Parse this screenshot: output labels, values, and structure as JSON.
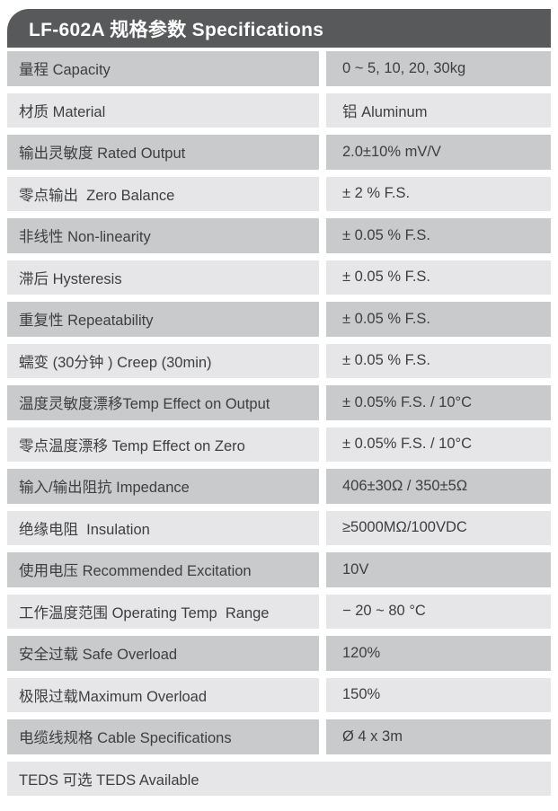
{
  "header": {
    "title": "LF-602A 规格参数 Specifications"
  },
  "table": {
    "rows": [
      {
        "label": "量程 Capacity",
        "value": "0 ~ 5, 10, 20, 30kg"
      },
      {
        "label": "材质 Material",
        "value": "铝 Aluminum"
      },
      {
        "label": "输出灵敏度 Rated Output",
        "value": "2.0±10% mV/V"
      },
      {
        "label": "零点输出  Zero Balance",
        "value": "± 2 % F.S."
      },
      {
        "label": "非线性 Non-linearity",
        "value": "± 0.05 % F.S."
      },
      {
        "label": "滞后 Hysteresis",
        "value": "± 0.05 % F.S."
      },
      {
        "label": "重复性 Repeatability",
        "value": "± 0.05 % F.S."
      },
      {
        "label": "蠕变 (30分钟 ) Creep (30min)",
        "value": "± 0.05 % F.S."
      },
      {
        "label": "温度灵敏度漂移Temp Effect on Output",
        "value": "± 0.05% F.S. / 10°C"
      },
      {
        "label": "零点温度漂移 Temp Effect on Zero",
        "value": "± 0.05% F.S. / 10°C"
      },
      {
        "label": "输入/输出阻抗 Impedance",
        "value": "406±30Ω / 350±5Ω"
      },
      {
        "label": "绝缘电阻  Insulation",
        "value": "≥5000MΩ/100VDC"
      },
      {
        "label": "使用电压 Recommended Excitation",
        "value": "10V"
      },
      {
        "label": "工作温度范围 Operating Temp  Range",
        "value": "− 20 ~ 80 °C"
      },
      {
        "label": "安全过载 Safe Overload",
        "value": "120%"
      },
      {
        "label": "极限过载Maximum Overload",
        "value": "150%"
      },
      {
        "label": "电缆线规格 Cable Specifications",
        "value": "Ø 4 x 3m"
      },
      {
        "label": "TEDS 可选 TEDS Available",
        "value": null
      }
    ]
  },
  "colors": {
    "header_bg": "#58595b",
    "header_text": "#ffffff",
    "row_dark_bg": "#c9cacb",
    "row_light_bg": "#e6e6e8",
    "text": "#3d3e40"
  }
}
